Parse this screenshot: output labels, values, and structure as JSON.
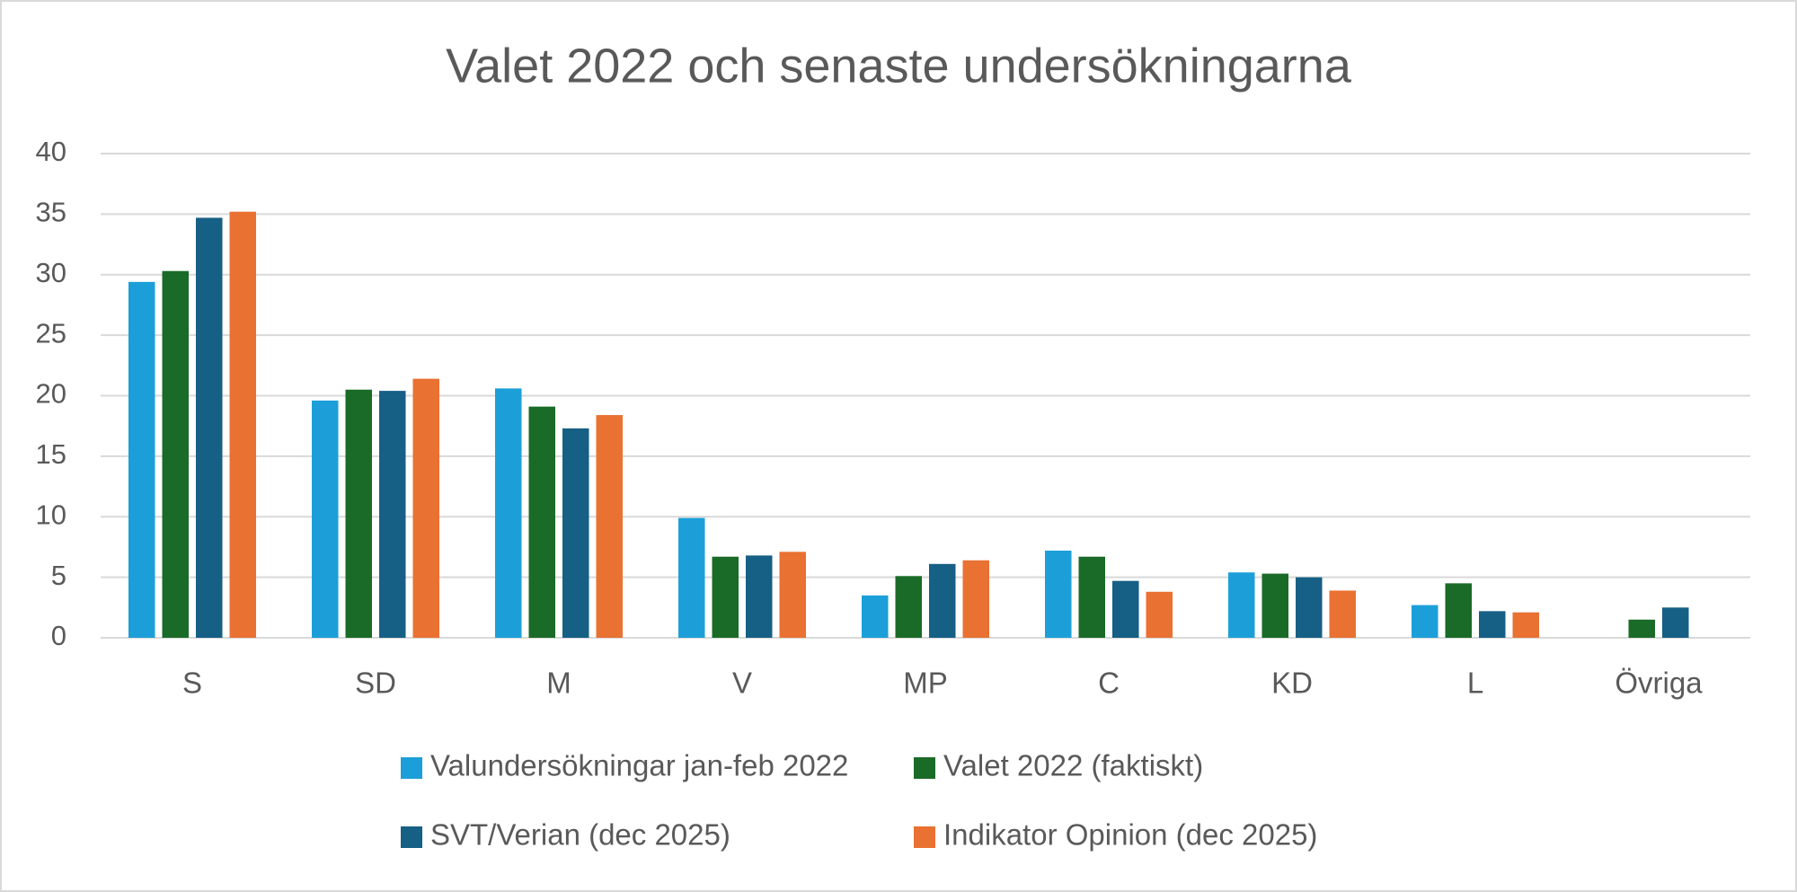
{
  "chart_data": {
    "type": "bar",
    "title": "Valet 2022 och senaste undersökningarna",
    "categories": [
      "S",
      "SD",
      "M",
      "V",
      "MP",
      "C",
      "KD",
      "L",
      "Övriga"
    ],
    "series": [
      {
        "name": "Valundersökningar jan-feb 2022",
        "color": "#1c9fd8",
        "values": [
          29.4,
          19.6,
          20.6,
          9.9,
          3.5,
          7.2,
          5.4,
          2.7,
          null
        ]
      },
      {
        "name": "Valet 2022 (faktiskt)",
        "color": "#1a6b27",
        "values": [
          30.3,
          20.5,
          19.1,
          6.7,
          5.1,
          6.7,
          5.3,
          4.5,
          1.5
        ]
      },
      {
        "name": "SVT/Verian (dec 2025)",
        "color": "#165f85",
        "values": [
          34.7,
          20.4,
          17.3,
          6.8,
          6.1,
          4.7,
          5.0,
          2.2,
          2.5
        ]
      },
      {
        "name": "Indikator Opinion (dec 2025)",
        "color": "#e97132",
        "values": [
          35.2,
          21.4,
          18.4,
          7.1,
          6.4,
          3.8,
          3.9,
          2.1,
          null
        ]
      }
    ],
    "ylim": [
      0,
      40
    ],
    "yticks": [
      0,
      5,
      10,
      15,
      20,
      25,
      30,
      35,
      40
    ],
    "grid": true,
    "legend": "bottom"
  }
}
